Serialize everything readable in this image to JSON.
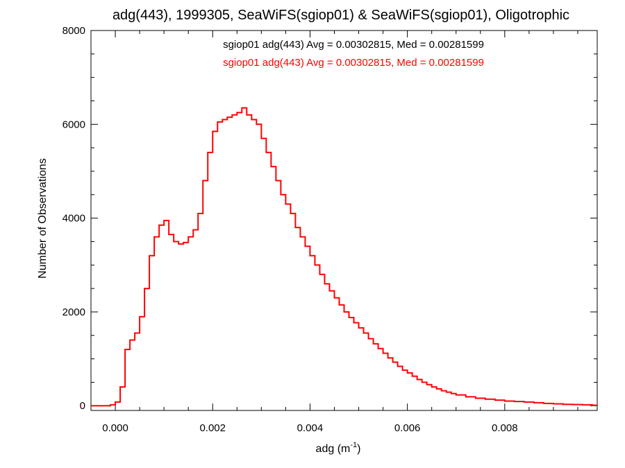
{
  "chart_data": {
    "type": "line",
    "title": "adg(443), 1999305, SeaWiFS(sgiop01) & SeaWiFS(sgiop01), Oligotrophic",
    "xlabel": "adg (m",
    "xlabel_sup": "-1",
    "xlabel_suffix": ")",
    "ylabel": "Number of Observations",
    "xlim": [
      -0.0005,
      0.0099
    ],
    "ylim": [
      -100,
      8000
    ],
    "xticks": [
      0.0,
      0.002,
      0.004,
      0.006,
      0.008
    ],
    "xtick_labels": [
      "0.000",
      "0.002",
      "0.004",
      "0.006",
      "0.008"
    ],
    "yticks": [
      0,
      2000,
      4000,
      6000,
      8000
    ],
    "ytick_labels": [
      "0",
      "2000",
      "4000",
      "6000",
      "8000"
    ],
    "grid": false,
    "colors": {
      "series1": "#000000",
      "series2": "#ff0000"
    },
    "annotations": [
      {
        "text": "sgiop01 adg(443) Avg = 0.00302815, Med = 0.00281599",
        "color": "#000000"
      },
      {
        "text": "sgiop01 adg(443) Avg = 0.00302815, Med = 0.00281599",
        "color": "#ff0000"
      }
    ],
    "series": [
      {
        "color": "#ff0000",
        "x": [
          -0.0005,
          -0.0004,
          -0.0003,
          -0.0002,
          -0.0001,
          0.0,
          0.0001,
          0.0002,
          0.0003,
          0.0004,
          0.0005,
          0.0006,
          0.0007,
          0.0008,
          0.0009,
          0.001,
          0.0011,
          0.0012,
          0.0013,
          0.0014,
          0.0015,
          0.0016,
          0.0017,
          0.0018,
          0.0019,
          0.002,
          0.0021,
          0.0022,
          0.0023,
          0.0024,
          0.0025,
          0.0026,
          0.0027,
          0.0028,
          0.0029,
          0.003,
          0.0031,
          0.0032,
          0.0033,
          0.0034,
          0.0035,
          0.0036,
          0.0037,
          0.0038,
          0.0039,
          0.004,
          0.0041,
          0.0042,
          0.0043,
          0.0044,
          0.0045,
          0.0046,
          0.0047,
          0.0048,
          0.0049,
          0.005,
          0.0051,
          0.0052,
          0.0053,
          0.0054,
          0.0055,
          0.0056,
          0.0057,
          0.0058,
          0.0059,
          0.006,
          0.0061,
          0.0062,
          0.0063,
          0.0064,
          0.0065,
          0.0066,
          0.0067,
          0.0068,
          0.0069,
          0.007,
          0.0072,
          0.0074,
          0.0076,
          0.0078,
          0.008,
          0.0082,
          0.0084,
          0.0086,
          0.0088,
          0.009,
          0.0092,
          0.0094,
          0.0096,
          0.0098
        ],
        "y": [
          0,
          0,
          0,
          0,
          20,
          80,
          400,
          1200,
          1400,
          1550,
          1900,
          2500,
          3200,
          3600,
          3850,
          3950,
          3650,
          3500,
          3450,
          3480,
          3600,
          3750,
          4100,
          4800,
          5400,
          5850,
          6050,
          6100,
          6150,
          6200,
          6250,
          6350,
          6200,
          6100,
          6000,
          5700,
          5400,
          5100,
          4800,
          4500,
          4300,
          4100,
          3800,
          3600,
          3400,
          3200,
          3000,
          2800,
          2600,
          2450,
          2300,
          2150,
          2000,
          1880,
          1770,
          1660,
          1550,
          1430,
          1320,
          1220,
          1120,
          1020,
          930,
          840,
          760,
          700,
          630,
          560,
          500,
          450,
          400,
          360,
          320,
          290,
          260,
          230,
          190,
          160,
          140,
          120,
          100,
          90,
          80,
          65,
          50,
          40,
          30,
          25,
          20,
          10
        ]
      }
    ]
  }
}
